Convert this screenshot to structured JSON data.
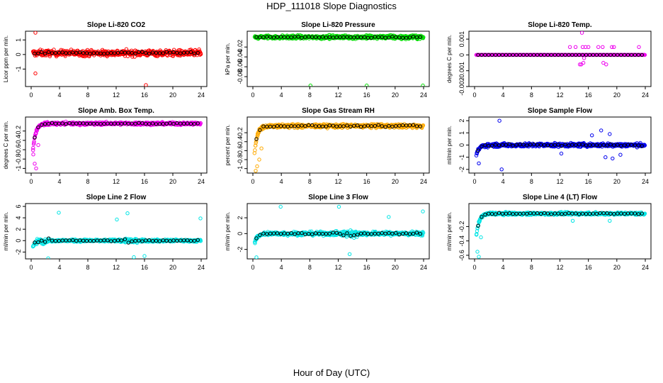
{
  "page": {
    "title": "HDP_111018  Slope Diagnostics",
    "xlabel": "Hour of Day (UTC)"
  },
  "x_ticks": [
    0,
    4,
    8,
    12,
    16,
    20,
    24
  ],
  "chart_data": [
    {
      "type": "scatter",
      "title": "Slope Li-820 CO2",
      "ylabel": "Licor ppm per min.",
      "color": "#ff0000",
      "ylim": [
        -2.2,
        1.6
      ],
      "yticks": [
        -1,
        0,
        1
      ],
      "base": 0.1,
      "noise": 0.35,
      "ramp": 0,
      "outliers": [
        [
          0.6,
          1.5
        ],
        [
          0.6,
          -1.3
        ],
        [
          16.2,
          -2.1
        ]
      ],
      "bands": []
    },
    {
      "type": "scatter",
      "title": "Slope Li-820 Pressure",
      "ylabel": "kPa per min.",
      "color": "#00dd00",
      "ylim": [
        -0.1,
        0.012
      ],
      "yticks": [
        -0.02,
        -0.04,
        -0.06,
        -0.08
      ],
      "base": 0.0,
      "noise": 0.006,
      "ramp": 0,
      "outliers": [
        [
          8.1,
          -0.098
        ],
        [
          16.0,
          -0.098
        ],
        [
          23.9,
          -0.098
        ]
      ],
      "bands": []
    },
    {
      "type": "scatter",
      "title": "Slope Li-820 Temp.",
      "ylabel": "degrees C per min.",
      "color": "#ee00ee",
      "ylim": [
        -0.002,
        0.0015
      ],
      "yticks": [
        -0.002,
        -0.001,
        0,
        0.001
      ],
      "base": 0.0,
      "noise": 0.0,
      "ramp": 0,
      "outliers": [
        [
          13.4,
          0.0005
        ],
        [
          14.2,
          0.0005
        ],
        [
          15.1,
          0.0014
        ],
        [
          15.3,
          -0.0005
        ],
        [
          15.0,
          -0.0006
        ],
        [
          15.6,
          0.0005
        ],
        [
          17.4,
          0.0005
        ],
        [
          18.1,
          -0.0005
        ],
        [
          19.3,
          0.0005
        ],
        [
          19.6,
          0.0005
        ],
        [
          18.5,
          -0.0006
        ],
        [
          23.1,
          0.0005
        ],
        [
          15.4,
          -0.0002
        ],
        [
          15.2,
          0.0005
        ],
        [
          16.0,
          0.0005
        ],
        [
          14.8,
          -0.0006
        ],
        [
          18.0,
          0.0005
        ]
      ],
      "bands": []
    },
    {
      "type": "scatter",
      "title": "Slope Amb. Box Temp.",
      "ylabel": "degrees C per min.",
      "color": "#ee00ee",
      "ylim": [
        -1.1,
        0.1
      ],
      "yticks": [
        -1.0,
        -0.8,
        -0.6,
        -0.4,
        -0.2
      ],
      "base": -0.04,
      "noise": 0.05,
      "ramp": -1.1,
      "outliers": [
        [
          0.3,
          -0.7
        ],
        [
          0.5,
          -0.9
        ],
        [
          0.7,
          -1.0
        ],
        [
          1.0,
          -0.5
        ]
      ],
      "bands": []
    },
    {
      "type": "scatter",
      "title": "Slope Gas Stream RH",
      "ylabel": "percent per min.",
      "color": "#ffaa00",
      "ylim": [
        -1.1,
        0.15
      ],
      "yticks": [
        -1.0,
        -0.8,
        -0.6,
        -0.4,
        -0.2
      ],
      "base": -0.05,
      "noise": 0.07,
      "ramp": -1.1,
      "outliers": [
        [
          0.4,
          -1.05
        ],
        [
          0.6,
          -0.95
        ],
        [
          0.9,
          -0.8
        ],
        [
          1.2,
          -0.55
        ]
      ],
      "bands": []
    },
    {
      "type": "scatter",
      "title": "Slope Sample Flow",
      "ylabel": "ml/min per min.",
      "color": "#0000ee",
      "ylim": [
        -2.3,
        2.3
      ],
      "yticks": [
        -2,
        -1,
        0,
        1,
        2
      ],
      "base": 0.0,
      "noise": 0.25,
      "ramp": -1.6,
      "outliers": [
        [
          3.5,
          2.0
        ],
        [
          3.8,
          -2.0
        ],
        [
          0.6,
          -1.5
        ],
        [
          17.8,
          1.2
        ],
        [
          18.4,
          -1.0
        ],
        [
          19.0,
          0.9
        ],
        [
          19.4,
          -1.1
        ],
        [
          16.5,
          0.8
        ],
        [
          20.5,
          -0.8
        ],
        [
          12.2,
          -0.7
        ]
      ],
      "bands": []
    },
    {
      "type": "scatter",
      "title": "Slope Line 2 Flow",
      "ylabel": "ml/min per min.",
      "color": "#00e5e5",
      "ylim": [
        -3.2,
        6.5
      ],
      "yticks": [
        -2,
        0,
        2,
        4,
        6
      ],
      "base": 0.0,
      "noise": 0.35,
      "ramp": -2.0,
      "outliers": [
        [
          3.9,
          4.9
        ],
        [
          13.6,
          4.8
        ],
        [
          12.1,
          3.7
        ],
        [
          23.9,
          3.9
        ],
        [
          2.4,
          -3.1
        ],
        [
          14.5,
          -2.9
        ],
        [
          16.0,
          -2.7
        ]
      ],
      "bands": [
        [
          0.5,
          2.5
        ],
        [
          12.5,
          15.0
        ]
      ]
    },
    {
      "type": "scatter",
      "title": "Slope Line 3 Flow",
      "ylabel": "ml/min per min.",
      "color": "#00e5e5",
      "ylim": [
        -3.2,
        3.8
      ],
      "yticks": [
        -2,
        0,
        2
      ],
      "base": 0.0,
      "noise": 0.4,
      "ramp": -2.3,
      "outliers": [
        [
          3.9,
          3.4
        ],
        [
          12.1,
          3.4
        ],
        [
          23.9,
          2.8
        ],
        [
          13.6,
          -2.6
        ],
        [
          19.1,
          2.1
        ],
        [
          0.5,
          -3.0
        ]
      ],
      "bands": [
        [
          12.5,
          15.0
        ]
      ]
    },
    {
      "type": "scatter",
      "title": "Slope Line 4 (LT) Flow",
      "ylabel": "ml/min per min.",
      "color": "#00e5e5",
      "ylim": [
        -0.65,
        0.12
      ],
      "yticks": [
        -0.6,
        -0.4,
        -0.2
      ],
      "base": -0.02,
      "noise": 0.03,
      "ramp": -0.6,
      "outliers": [
        [
          0.4,
          -0.55
        ],
        [
          0.6,
          -0.62
        ],
        [
          0.9,
          -0.35
        ],
        [
          13.8,
          -0.12
        ],
        [
          19.0,
          -0.12
        ]
      ],
      "bands": []
    }
  ]
}
